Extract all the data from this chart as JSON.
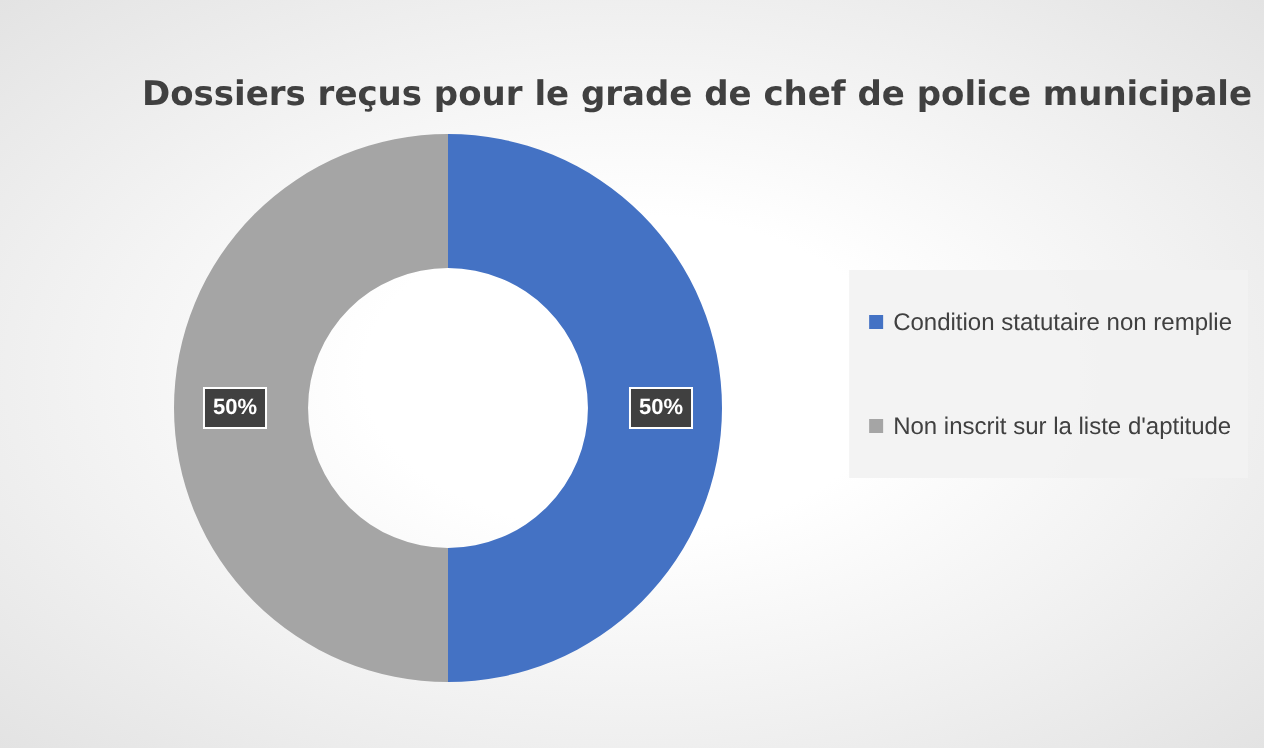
{
  "chart_data": {
    "type": "donut",
    "title": "Dossiers reçus pour le grade de chef de police municipale",
    "categories": [
      "Condition statutaire non remplie",
      "Non inscrit sur la liste d'aptitude"
    ],
    "values": [
      50,
      50
    ],
    "colors": [
      "#4472c4",
      "#a5a5a5"
    ],
    "value_labels": [
      "50%",
      "50%"
    ],
    "legend": "right"
  }
}
